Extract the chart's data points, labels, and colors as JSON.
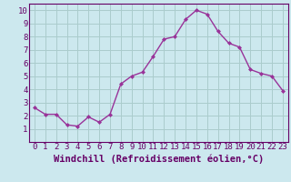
{
  "x": [
    0,
    1,
    2,
    3,
    4,
    5,
    6,
    7,
    8,
    9,
    10,
    11,
    12,
    13,
    14,
    15,
    16,
    17,
    18,
    19,
    20,
    21,
    22,
    23
  ],
  "y": [
    2.6,
    2.1,
    2.1,
    1.3,
    1.2,
    1.9,
    1.5,
    2.1,
    4.4,
    5.0,
    5.3,
    6.5,
    7.8,
    8.0,
    9.3,
    10.0,
    9.7,
    8.4,
    7.5,
    7.2,
    5.5,
    5.2,
    5.0,
    3.9
  ],
  "line_color": "#993399",
  "marker": "D",
  "marker_size": 2.0,
  "bg_color": "#cce8ee",
  "grid_color": "#aacccc",
  "xlabel": "Windchill (Refroidissement éolien,°C)",
  "xlim": [
    -0.5,
    23.5
  ],
  "ylim": [
    0,
    10.5
  ],
  "xticks": [
    0,
    1,
    2,
    3,
    4,
    5,
    6,
    7,
    8,
    9,
    10,
    11,
    12,
    13,
    14,
    15,
    16,
    17,
    18,
    19,
    20,
    21,
    22,
    23
  ],
  "yticks": [
    1,
    2,
    3,
    4,
    5,
    6,
    7,
    8,
    9,
    10
  ],
  "tick_fontsize": 6.5,
  "xlabel_fontsize": 7.5,
  "axis_label_color": "#660066",
  "tick_color": "#660066",
  "border_color": "#660066",
  "line_width": 1.0
}
